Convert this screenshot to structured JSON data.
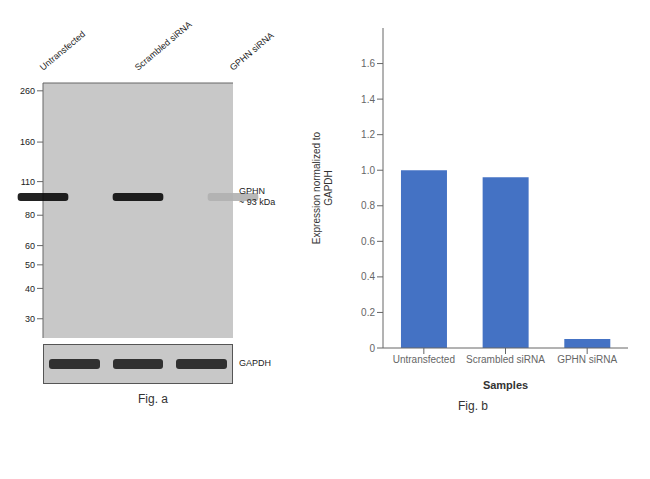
{
  "chart_data": [
    {
      "type": "blot",
      "title": "Fig. a",
      "categories": [
        "Untransfected",
        "Scrambled siRNA",
        "GPHN siRNA"
      ],
      "log": "y",
      "ylim": [
        25,
        280
      ],
      "yticks": [
        260,
        160,
        110,
        80,
        60,
        50,
        40,
        30
      ],
      "color": "#c8c8c8",
      "series": [
        {
          "name": "GPHN\n~ 93 kDa",
          "values": [
            95,
            95,
            95
          ],
          "colors": [
            "#0a0a0a",
            "#0a0a0a",
            "#b0b0b0"
          ]
        },
        {
          "name": "GAPDH",
          "colors": [
            "#1a1a1a",
            "#1a1a1a",
            "#1a1a1a"
          ]
        }
      ]
    },
    {
      "type": "bar",
      "title": "Fig. b",
      "categories": [
        "Untransfected",
        "Scrambled siRNA",
        "GPHN siRNA"
      ],
      "values": [
        1.0,
        0.96,
        0.05
      ],
      "color": "#4472c4",
      "xlabel": "Samples",
      "ylabel": "Expression normalized to\nGAPDH",
      "ylim": [
        0,
        1.8
      ],
      "yticks": [
        0,
        0.2,
        0.4,
        0.6,
        0.8,
        {
          "value": 1.0,
          "label": "1.0"
        },
        1.2,
        1.4,
        1.6
      ]
    }
  ]
}
